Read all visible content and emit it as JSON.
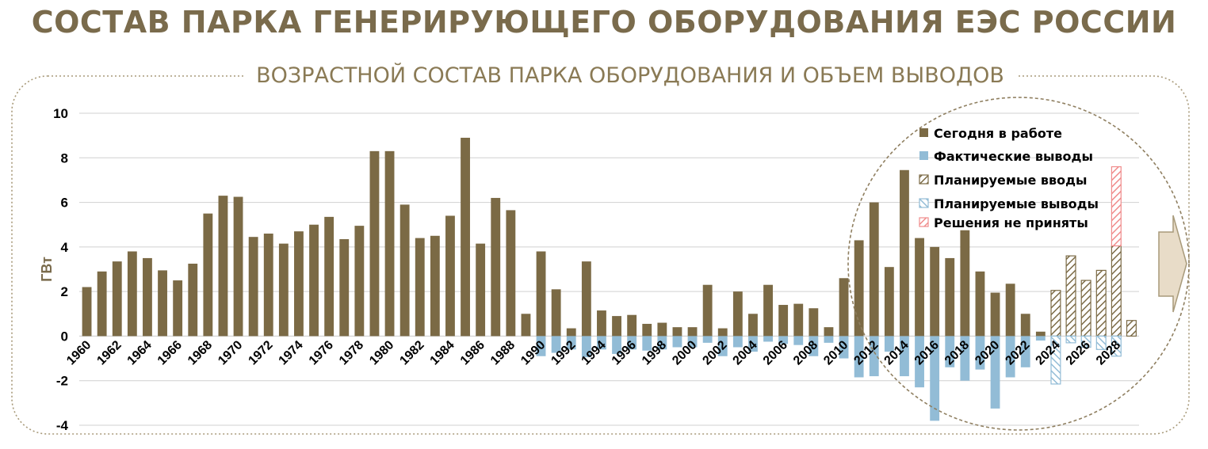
{
  "title": "СОСТАВ ПАРКА ГЕНЕРИРУЮЩЕГО ОБОРУДОВАНИЯ ЕЭС РОССИИ",
  "colors": {
    "working": "#7b6a45",
    "actual_decom": "#92bcd6",
    "planned_decom": "#92bcd6",
    "not_decided": "#f08c8c",
    "frame": "#a89a7a",
    "grid": "#d0d0d0"
  },
  "chart_data": {
    "type": "bar",
    "title": "ВОЗРАСТНОЙ СОСТАВ  ПАРКА ОБОРУДОВАНИЯ И ОБЪЕМ ВЫВОДОВ",
    "ylabel": "ГВт",
    "ylim": [
      -4,
      10
    ],
    "yticks": [
      "-4",
      "-2",
      "0",
      "2",
      "4",
      "6",
      "8",
      "10"
    ],
    "grid": true,
    "legend_position": "top-right",
    "x_tick_labels": [
      "1960",
      "1962",
      "1964",
      "1966",
      "1968",
      "1970",
      "1972",
      "1974",
      "1976",
      "1978",
      "1980",
      "1982",
      "1984",
      "1986",
      "1988",
      "1990",
      "1992",
      "1994",
      "1996",
      "1998",
      "2000",
      "2002",
      "2004",
      "2006",
      "2008",
      "2010",
      "2012",
      "2014",
      "2016",
      "2018",
      "2020",
      "2022",
      "2024",
      "2026",
      "2028"
    ],
    "categories": [
      1960,
      1961,
      1962,
      1963,
      1964,
      1965,
      1966,
      1967,
      1968,
      1969,
      1970,
      1971,
      1972,
      1973,
      1974,
      1975,
      1976,
      1977,
      1978,
      1979,
      1980,
      1981,
      1982,
      1983,
      1984,
      1985,
      1986,
      1987,
      1988,
      1989,
      1990,
      1991,
      1992,
      1993,
      1994,
      1995,
      1996,
      1997,
      1998,
      1999,
      2000,
      2001,
      2002,
      2003,
      2004,
      2005,
      2006,
      2007,
      2008,
      2009,
      2010,
      2011,
      2012,
      2013,
      2014,
      2015,
      2016,
      2017,
      2018,
      2019,
      2020,
      2021,
      2022,
      2023,
      2024,
      2025,
      2026,
      2027,
      2028,
      2029
    ],
    "series": [
      {
        "name": "Сегодня в работе",
        "style": "solid",
        "values": [
          2.2,
          2.9,
          3.35,
          3.8,
          3.5,
          2.95,
          2.5,
          3.25,
          5.5,
          6.3,
          6.25,
          4.45,
          4.6,
          4.15,
          4.7,
          5.0,
          5.35,
          4.35,
          4.95,
          8.3,
          8.3,
          5.9,
          4.4,
          4.5,
          5.4,
          8.9,
          4.15,
          6.2,
          5.65,
          1.0,
          3.8,
          2.1,
          0.35,
          3.35,
          1.15,
          0.9,
          0.95,
          0.55,
          0.6,
          0.4,
          0.4,
          2.3,
          0.35,
          2.0,
          1.0,
          2.3,
          1.4,
          1.45,
          1.25,
          0.4,
          2.6,
          4.3,
          6.0,
          3.1,
          7.45,
          4.4,
          4.0,
          3.5,
          4.75,
          2.9,
          1.95,
          2.35,
          1.0,
          0.2,
          0,
          0,
          0,
          0,
          0,
          0
        ]
      },
      {
        "name": "Фактические выводы",
        "style": "solid",
        "values": [
          0,
          0,
          0,
          0,
          0,
          0,
          0,
          0,
          0,
          0,
          0,
          0,
          0,
          0,
          0,
          0,
          0,
          0,
          0,
          0,
          0,
          0,
          0,
          0,
          0,
          0,
          0,
          0,
          0,
          0,
          -0.9,
          -0.75,
          -0.6,
          -0.95,
          -0.6,
          -0.8,
          -0.6,
          -0.65,
          -0.6,
          -0.5,
          -0.5,
          -0.3,
          -0.9,
          -0.5,
          -0.7,
          -0.25,
          -0.35,
          -0.4,
          -0.9,
          -0.3,
          -1.0,
          -1.85,
          -1.8,
          -0.7,
          -1.8,
          -2.3,
          -3.8,
          -1.4,
          -2.0,
          -1.5,
          -3.25,
          -1.85,
          -1.4,
          -0.2,
          0,
          0,
          0,
          0,
          0,
          0
        ]
      },
      {
        "name": "Планируемые вводы",
        "style": "hatched",
        "values": [
          0,
          0,
          0,
          0,
          0,
          0,
          0,
          0,
          0,
          0,
          0,
          0,
          0,
          0,
          0,
          0,
          0,
          0,
          0,
          0,
          0,
          0,
          0,
          0,
          0,
          0,
          0,
          0,
          0,
          0,
          0,
          0,
          0,
          0,
          0,
          0,
          0,
          0,
          0,
          0,
          0,
          0,
          0,
          0,
          0,
          0,
          0,
          0,
          0,
          0,
          0,
          0,
          0,
          0,
          0,
          0,
          0,
          0,
          0,
          0,
          0,
          0,
          0,
          0,
          2.05,
          3.6,
          2.5,
          2.95,
          4.05,
          0.7
        ]
      },
      {
        "name": "Планируемые выводы",
        "style": "hatched",
        "values": [
          0,
          0,
          0,
          0,
          0,
          0,
          0,
          0,
          0,
          0,
          0,
          0,
          0,
          0,
          0,
          0,
          0,
          0,
          0,
          0,
          0,
          0,
          0,
          0,
          0,
          0,
          0,
          0,
          0,
          0,
          0,
          0,
          0,
          0,
          0,
          0,
          0,
          0,
          0,
          0,
          0,
          0,
          0,
          0,
          0,
          0,
          0,
          0,
          0,
          0,
          0,
          0,
          0,
          0,
          0,
          0,
          0,
          0,
          0,
          0,
          0,
          0,
          0,
          0,
          -2.15,
          -0.3,
          -0.5,
          -0.6,
          -0.9,
          0
        ]
      },
      {
        "name": "Решения не приняты",
        "style": "hatched",
        "values": [
          0,
          0,
          0,
          0,
          0,
          0,
          0,
          0,
          0,
          0,
          0,
          0,
          0,
          0,
          0,
          0,
          0,
          0,
          0,
          0,
          0,
          0,
          0,
          0,
          0,
          0,
          0,
          0,
          0,
          0,
          0,
          0,
          0,
          0,
          0,
          0,
          0,
          0,
          0,
          0,
          0,
          0,
          0,
          0,
          0,
          0,
          0,
          0,
          0,
          0,
          0,
          0,
          0,
          0,
          0,
          0,
          0,
          0,
          0,
          0,
          0,
          0,
          0,
          0,
          0,
          0,
          0,
          0,
          3.55,
          0
        ]
      }
    ]
  }
}
